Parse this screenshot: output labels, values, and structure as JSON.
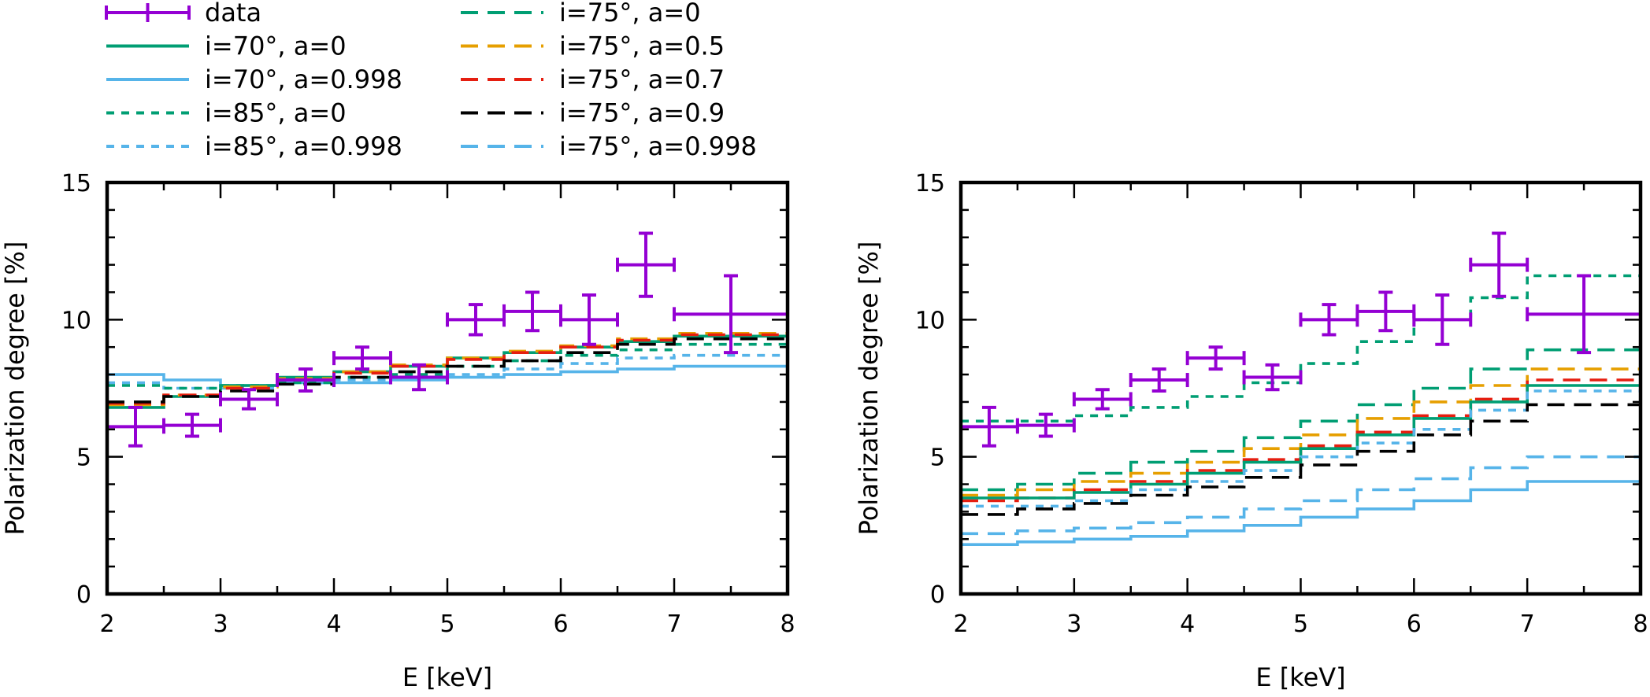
{
  "legend": [
    {
      "id": "data",
      "label": "data",
      "color": "#9400d3",
      "style": "errorbar"
    },
    {
      "id": "i70_a0",
      "label": "i=70°, a=0",
      "color": "#009e73",
      "style": "solid"
    },
    {
      "id": "i70_a0998",
      "label": "i=70°, a=0.998",
      "color": "#56b4e9",
      "style": "solid"
    },
    {
      "id": "i85_a0",
      "label": "i=85°, a=0",
      "color": "#009e73",
      "style": "dotted"
    },
    {
      "id": "i85_a0998",
      "label": "i=85°, a=0.998",
      "color": "#56b4e9",
      "style": "dotted"
    },
    {
      "id": "i75_a0",
      "label": "i=75°, a=0",
      "color": "#009e73",
      "style": "dashed"
    },
    {
      "id": "i75_a05",
      "label": "i=75°, a=0.5",
      "color": "#e69f00",
      "style": "dashed"
    },
    {
      "id": "i75_a07",
      "label": "i=75°, a=0.7",
      "color": "#e51e10",
      "style": "dashed"
    },
    {
      "id": "i75_a09",
      "label": "i=75°, a=0.9",
      "color": "#000000",
      "style": "dashed"
    },
    {
      "id": "i75_a0998",
      "label": "i=75°, a=0.998",
      "color": "#56b4e9",
      "style": "dashed"
    }
  ],
  "chart_data": [
    {
      "type": "step",
      "title": "",
      "xlabel": "E [keV]",
      "ylabel": "Polarization degree [%]",
      "xlim": [
        2,
        8
      ],
      "ylim": [
        0,
        15
      ],
      "xticks": [
        2,
        3,
        4,
        5,
        6,
        7,
        8
      ],
      "yticks": [
        0,
        5,
        10,
        15
      ],
      "bin_edges": [
        2,
        2.5,
        3,
        3.5,
        4,
        4.5,
        5,
        5.5,
        6,
        6.5,
        7,
        8
      ],
      "data": {
        "x": [
          2.25,
          2.75,
          3.25,
          3.75,
          4.25,
          4.75,
          5.25,
          5.75,
          6.25,
          6.75,
          7.5
        ],
        "xerr": [
          0.25,
          0.25,
          0.25,
          0.25,
          0.25,
          0.25,
          0.25,
          0.25,
          0.25,
          0.25,
          0.5
        ],
        "y": [
          6.1,
          6.15,
          7.1,
          7.8,
          8.6,
          7.9,
          10.0,
          10.3,
          10.0,
          12.0,
          10.2
        ],
        "yerr": [
          0.7,
          0.4,
          0.35,
          0.4,
          0.4,
          0.45,
          0.55,
          0.7,
          0.9,
          1.15,
          1.4
        ]
      },
      "series": [
        {
          "id": "i70_a0998",
          "values": [
            8.0,
            7.8,
            7.6,
            7.7,
            7.7,
            7.8,
            7.9,
            8.0,
            8.1,
            8.2,
            8.3
          ]
        },
        {
          "id": "i85_a0998",
          "values": [
            7.7,
            7.5,
            7.5,
            7.7,
            7.8,
            7.9,
            8.0,
            8.2,
            8.4,
            8.6,
            8.7
          ]
        },
        {
          "id": "i85_a0",
          "values": [
            7.6,
            7.5,
            7.6,
            7.7,
            7.9,
            8.0,
            8.3,
            8.5,
            8.7,
            8.9,
            9.1
          ]
        },
        {
          "id": "i70_a0",
          "values": [
            6.8,
            7.2,
            7.6,
            7.9,
            8.1,
            8.3,
            8.6,
            8.8,
            9.0,
            9.2,
            9.4
          ]
        },
        {
          "id": "i75_a05",
          "values": [
            6.9,
            7.25,
            7.55,
            7.85,
            8.1,
            8.35,
            8.6,
            8.85,
            9.05,
            9.3,
            9.5
          ]
        },
        {
          "id": "i75_a07",
          "values": [
            6.95,
            7.25,
            7.5,
            7.8,
            8.05,
            8.3,
            8.55,
            8.8,
            9.0,
            9.25,
            9.45
          ]
        },
        {
          "id": "i75_a09",
          "values": [
            7.0,
            7.2,
            7.4,
            7.65,
            7.9,
            8.1,
            8.3,
            8.5,
            8.8,
            9.1,
            9.3
          ]
        }
      ]
    },
    {
      "type": "step",
      "title": "",
      "xlabel": "E [keV]",
      "ylabel": "Polarization degree [%]",
      "xlim": [
        2,
        8
      ],
      "ylim": [
        0,
        15
      ],
      "xticks": [
        2,
        3,
        4,
        5,
        6,
        7,
        8
      ],
      "yticks": [
        0,
        5,
        10,
        15
      ],
      "bin_edges": [
        2,
        2.5,
        3,
        3.5,
        4,
        4.5,
        5,
        5.5,
        6,
        6.5,
        7,
        8
      ],
      "data": {
        "x": [
          2.25,
          2.75,
          3.25,
          3.75,
          4.25,
          4.75,
          5.25,
          5.75,
          6.25,
          6.75,
          7.5
        ],
        "xerr": [
          0.25,
          0.25,
          0.25,
          0.25,
          0.25,
          0.25,
          0.25,
          0.25,
          0.25,
          0.25,
          0.5
        ],
        "y": [
          6.1,
          6.15,
          7.1,
          7.8,
          8.6,
          7.9,
          10.0,
          10.3,
          10.0,
          12.0,
          10.2
        ],
        "yerr": [
          0.7,
          0.4,
          0.35,
          0.4,
          0.4,
          0.45,
          0.55,
          0.7,
          0.9,
          1.15,
          1.4
        ]
      },
      "series": [
        {
          "id": "i85_a0",
          "values": [
            6.3,
            6.3,
            6.5,
            6.8,
            7.2,
            7.7,
            8.4,
            9.2,
            10.0,
            10.8,
            11.6
          ]
        },
        {
          "id": "i75_a0",
          "values": [
            3.8,
            4.0,
            4.4,
            4.8,
            5.2,
            5.7,
            6.3,
            6.9,
            7.5,
            8.2,
            8.9
          ]
        },
        {
          "id": "i75_a05",
          "values": [
            3.6,
            3.8,
            4.1,
            4.4,
            4.8,
            5.3,
            5.8,
            6.4,
            7.0,
            7.6,
            8.2
          ]
        },
        {
          "id": "i75_a07",
          "values": [
            3.4,
            3.5,
            3.8,
            4.1,
            4.5,
            4.9,
            5.4,
            5.9,
            6.5,
            7.1,
            7.8
          ]
        },
        {
          "id": "i70_a0",
          "values": [
            3.5,
            3.5,
            3.7,
            4.0,
            4.4,
            4.8,
            5.3,
            5.8,
            6.4,
            7.0,
            7.6
          ]
        },
        {
          "id": "i85_a0998",
          "values": [
            3.2,
            3.2,
            3.4,
            3.8,
            4.1,
            4.5,
            5.0,
            5.5,
            6.0,
            6.7,
            7.4
          ]
        },
        {
          "id": "i75_a09",
          "values": [
            2.9,
            3.1,
            3.3,
            3.6,
            3.9,
            4.25,
            4.7,
            5.2,
            5.8,
            6.3,
            6.9
          ]
        },
        {
          "id": "i75_a0998",
          "values": [
            2.2,
            2.3,
            2.4,
            2.6,
            2.8,
            3.1,
            3.4,
            3.8,
            4.2,
            4.6,
            5.0
          ]
        },
        {
          "id": "i70_a0998",
          "values": [
            1.8,
            1.9,
            2.0,
            2.1,
            2.3,
            2.5,
            2.8,
            3.1,
            3.4,
            3.8,
            4.1
          ]
        }
      ]
    }
  ]
}
